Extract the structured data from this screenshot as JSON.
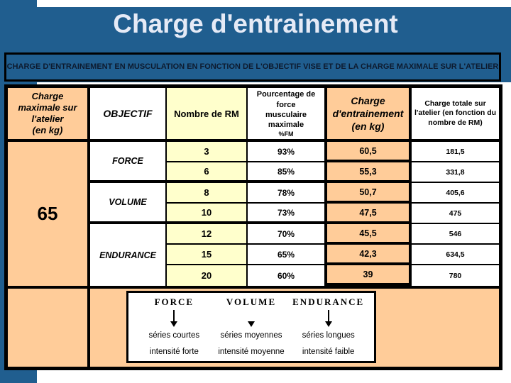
{
  "slide": {
    "title": "Charge d'entrainement",
    "subtitle": "CHARGE D'ENTRAINEMENT EN MUSCULATION EN FONCTION DE L'OBJECTIF VISE ET DE LA CHARGE MAXIMALE SUR L'ATELIER"
  },
  "colors": {
    "background_blue": "#205E8F",
    "title_text": "#E5EAF6",
    "peach": "#FFCC99",
    "light_yellow": "#FFFFCC",
    "border_black": "#000000",
    "white": "#FFFFFF"
  },
  "table": {
    "headers": {
      "charge_max": "Charge\nmaximale sur\nl'atelier\n(en kg)",
      "objectif": "OBJECTIF",
      "nombre_rm": "Nombre de RM",
      "pct_force": "Pourcentage de force\nmusculaire maximale",
      "pct_force_sub": "%FM",
      "charge_entrainement": "Charge\nd'entrainement\n(en kg)",
      "charge_totale": "Charge totale sur l'atelier  (en fonction du nombre de RM)"
    },
    "charge_max_value": "65",
    "groups": [
      {
        "label": "FORCE",
        "rows": 2
      },
      {
        "label": "VOLUME",
        "rows": 2
      },
      {
        "label": "ENDURANCE",
        "rows": 3
      }
    ],
    "rows": [
      {
        "rm": "3",
        "pct": "93%",
        "charge": "60,5",
        "total": "181,5"
      },
      {
        "rm": "6",
        "pct": "85%",
        "charge": "55,3",
        "total": "331,8"
      },
      {
        "rm": "8",
        "pct": "78%",
        "charge": "50,7",
        "total": "405,6"
      },
      {
        "rm": "10",
        "pct": "73%",
        "charge": "47,5",
        "total": "475"
      },
      {
        "rm": "12",
        "pct": "70%",
        "charge": "45,5",
        "total": "546"
      },
      {
        "rm": "15",
        "pct": "65%",
        "charge": "42,3",
        "total": "634,5"
      },
      {
        "rm": "20",
        "pct": "60%",
        "charge": "39",
        "total": "780"
      }
    ]
  },
  "diagram": {
    "columns": [
      {
        "title": "FORCE",
        "series": "séries courtes",
        "intensity": "intensité forte",
        "arrow": "full"
      },
      {
        "title": "VOLUME",
        "series": "séries moyennes",
        "intensity": "intensité moyenne",
        "arrow": "head"
      },
      {
        "title": "ENDURANCE",
        "series": "séries longues",
        "intensity": "intensité faible",
        "arrow": "full"
      }
    ]
  }
}
